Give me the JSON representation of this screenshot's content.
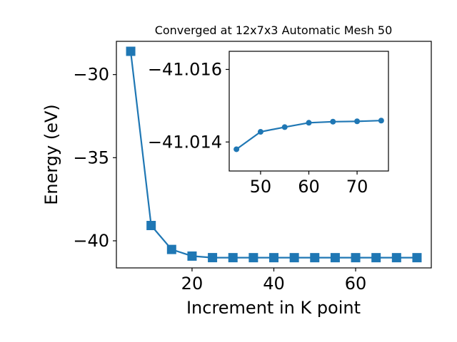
{
  "chart_data": [
    {
      "type": "line",
      "title": "Converged at 12x7x3 Automatic Mesh 50",
      "xlabel": "Increment in K point",
      "ylabel": "Energy (eV)",
      "x": [
        5,
        10,
        15,
        20,
        25,
        30,
        35,
        40,
        45,
        50,
        55,
        60,
        65,
        70,
        75
      ],
      "series": [
        {
          "values": [
            -28.6,
            -39.08,
            -40.52,
            -40.92,
            -41.012,
            -41.0138,
            -41.0143,
            -41.0145,
            -41.0146,
            -41.0147,
            -41.0147,
            -41.0148,
            -41.0148,
            -41.0148,
            -41.0148
          ],
          "color": "#1f77b4",
          "marker": "square"
        }
      ],
      "xlim": [
        1.5,
        78.5
      ],
      "ylim": [
        -41.63,
        -28.0
      ],
      "xticks": [
        20,
        40,
        60
      ],
      "yticks": [
        -30,
        -35,
        -40
      ],
      "xtick_labels": [
        "20",
        "40",
        "60"
      ],
      "ytick_labels": [
        "−30",
        "−35",
        "−40"
      ]
    },
    {
      "type": "line",
      "inset": true,
      "title": "",
      "xlabel": "",
      "ylabel": "",
      "x": [
        45,
        50,
        55,
        60,
        65,
        70,
        75
      ],
      "series": [
        {
          "values": [
            -41.0138,
            -41.01428,
            -41.01441,
            -41.01453,
            -41.01456,
            -41.01457,
            -41.01459
          ],
          "color": "#1f77b4",
          "marker": "circle"
        }
      ],
      "xlim": [
        43.5,
        76.5
      ],
      "ylim": [
        -41.0132,
        -41.0165
      ],
      "xticks": [
        50,
        60,
        70
      ],
      "yticks": [
        -41.016,
        -41.014
      ],
      "xtick_labels": [
        "50",
        "60",
        "70"
      ],
      "ytick_labels": [
        "−41.016",
        "−41.014"
      ]
    }
  ]
}
